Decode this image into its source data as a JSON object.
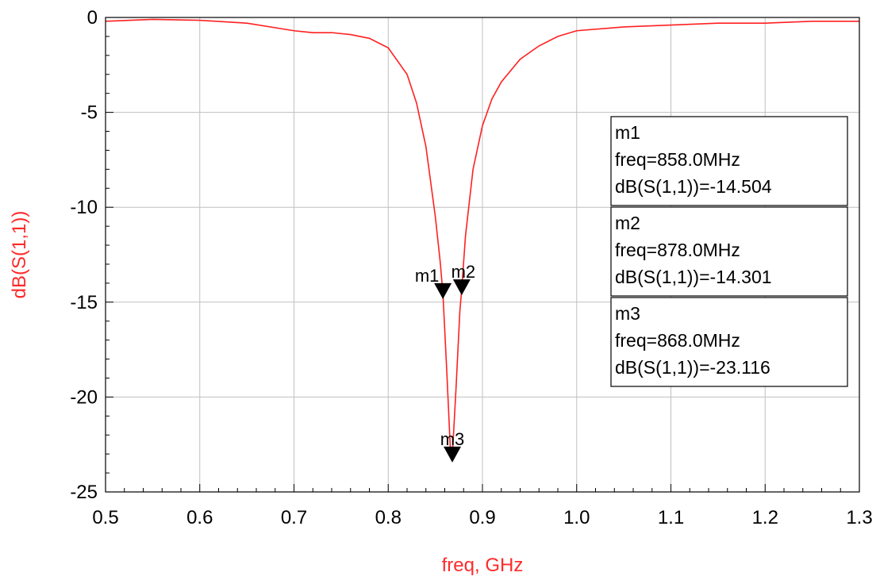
{
  "chart_data": {
    "type": "line",
    "xlabel": "freq, GHz",
    "ylabel": "dB(S(1,1))",
    "xlim": [
      0.5,
      1.3
    ],
    "ylim": [
      -25,
      0
    ],
    "grid": true,
    "x_ticks": [
      "0.5",
      "0.6",
      "0.7",
      "0.8",
      "0.9",
      "1.0",
      "1.1",
      "1.2",
      "1.3"
    ],
    "y_ticks": [
      "0",
      "-5",
      "-10",
      "-15",
      "-20",
      "-25"
    ],
    "colors": {
      "trace": "#ff2020",
      "axis_title": "#ff2a2a",
      "grid": "#c0c0c0"
    },
    "series": [
      {
        "x": [
          0.5,
          0.55,
          0.6,
          0.65,
          0.7,
          0.72,
          0.74,
          0.76,
          0.78,
          0.8,
          0.82,
          0.83,
          0.84,
          0.85,
          0.855,
          0.858,
          0.862,
          0.866,
          0.868,
          0.872,
          0.876,
          0.878,
          0.882,
          0.89,
          0.9,
          0.91,
          0.92,
          0.94,
          0.96,
          0.98,
          1.0,
          1.05,
          1.1,
          1.15,
          1.2,
          1.25,
          1.3
        ],
        "y": [
          -0.2,
          -0.1,
          -0.15,
          -0.3,
          -0.7,
          -0.8,
          -0.8,
          -0.9,
          -1.1,
          -1.6,
          -3.0,
          -4.5,
          -6.8,
          -10.5,
          -12.8,
          -14.5,
          -18.5,
          -22.8,
          -23.116,
          -19.5,
          -15.5,
          -14.3,
          -11.5,
          -8.0,
          -5.7,
          -4.3,
          -3.4,
          -2.2,
          -1.5,
          -1.0,
          -0.7,
          -0.5,
          -0.4,
          -0.3,
          -0.3,
          -0.2,
          -0.2
        ]
      }
    ],
    "markers": [
      {
        "label": "m1",
        "freq": 0.858,
        "value": -14.504,
        "lines": [
          "m1",
          "freq=858.0MHz",
          "dB(S(1,1))=-14.504"
        ]
      },
      {
        "label": "m2",
        "freq": 0.878,
        "value": -14.301,
        "lines": [
          "m2",
          "freq=878.0MHz",
          "dB(S(1,1))=-14.301"
        ]
      },
      {
        "label": "m3",
        "freq": 0.868,
        "value": -23.116,
        "lines": [
          "m3",
          "freq=868.0MHz",
          "dB(S(1,1))=-23.116"
        ]
      }
    ]
  }
}
